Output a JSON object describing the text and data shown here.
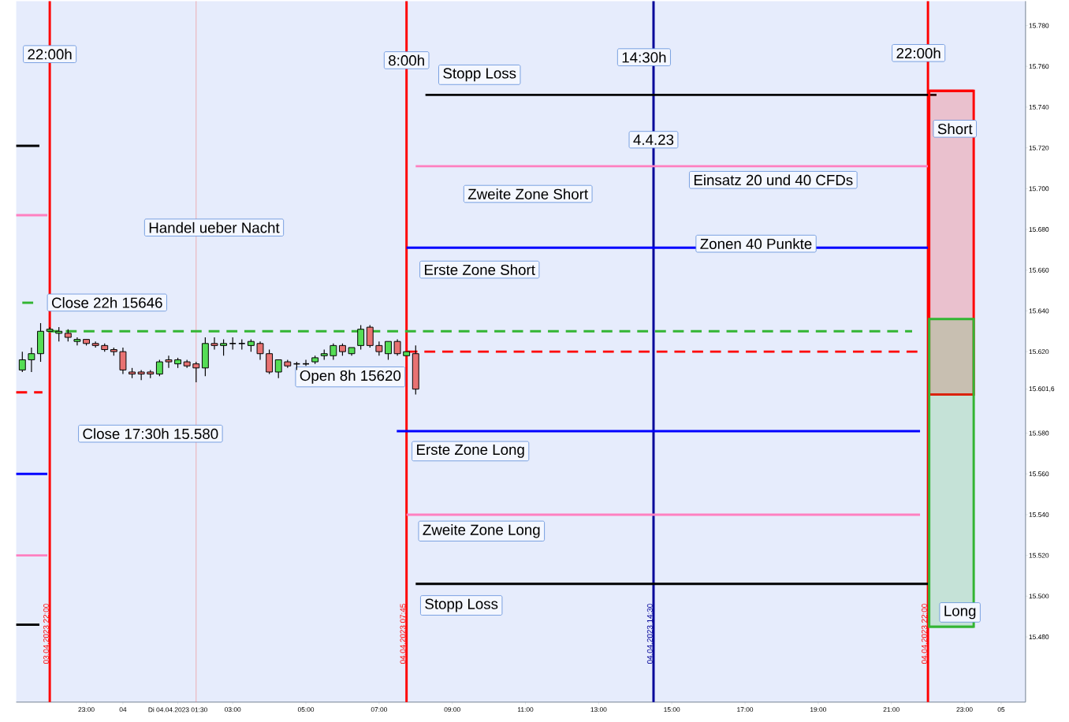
{
  "chart_data": {
    "type": "candlestick",
    "x": [
      "2023-04-03T21:15",
      "2023-04-03T21:30",
      "2023-04-03T21:45",
      "2023-04-03T22:00",
      "2023-04-03T22:15",
      "2023-04-03T22:30",
      "2023-04-03T22:45",
      "2023-04-03T23:00",
      "2023-04-03T23:15",
      "2023-04-03T23:30",
      "2023-04-03T23:45",
      "2023-04-04T00:00",
      "2023-04-04T00:15",
      "2023-04-04T00:30",
      "2023-04-04T00:45",
      "2023-04-04T01:00",
      "2023-04-04T01:15",
      "2023-04-04T01:30",
      "2023-04-04T01:45",
      "2023-04-04T02:00",
      "2023-04-04T02:15",
      "2023-04-04T02:30",
      "2023-04-04T02:45",
      "2023-04-04T03:00",
      "2023-04-04T03:15",
      "2023-04-04T03:30",
      "2023-04-04T03:45",
      "2023-04-04T04:00",
      "2023-04-04T04:15",
      "2023-04-04T04:30",
      "2023-04-04T04:45",
      "2023-04-04T05:00",
      "2023-04-04T05:15",
      "2023-04-04T05:30",
      "2023-04-04T05:45",
      "2023-04-04T06:00",
      "2023-04-04T06:15",
      "2023-04-04T06:30",
      "2023-04-04T06:45",
      "2023-04-04T07:00",
      "2023-04-04T07:15",
      "2023-04-04T07:30",
      "2023-04-04T07:45",
      "2023-04-04T08:00"
    ],
    "ohlc": [
      [
        15611,
        15620,
        15610,
        15616
      ],
      [
        15616,
        15622,
        15610,
        15619
      ],
      [
        15619,
        15634,
        15615,
        15630
      ],
      [
        15630,
        15632,
        15630,
        15631
      ],
      [
        15629,
        15632,
        15625,
        15630
      ],
      [
        15629,
        15631,
        15625,
        15627
      ],
      [
        15625,
        15627,
        15623,
        15626
      ],
      [
        15626,
        15626,
        15623,
        15624
      ],
      [
        15624,
        15625,
        15622,
        15623
      ],
      [
        15623,
        15624,
        15620,
        15621
      ],
      [
        15621,
        15622,
        15618,
        15620
      ],
      [
        15620,
        15622,
        15609,
        15611
      ],
      [
        15610,
        15612,
        15607,
        15609
      ],
      [
        15610,
        15611,
        15606,
        15609
      ],
      [
        15610,
        15611,
        15607,
        15609
      ],
      [
        15609,
        15616,
        15608,
        15615
      ],
      [
        15616,
        15618,
        15612,
        15615
      ],
      [
        15614,
        15617,
        15612,
        15616
      ],
      [
        15615,
        15616,
        15612,
        15613
      ],
      [
        15614,
        15615,
        15605,
        15612
      ],
      [
        15612,
        15627,
        15608,
        15624
      ],
      [
        15624,
        15627,
        15621,
        15623
      ],
      [
        15623,
        15626,
        15618,
        15624
      ],
      [
        15624,
        15627,
        15621,
        15624
      ],
      [
        15624,
        15626,
        15621,
        15624
      ],
      [
        15623,
        15626,
        15620,
        15625
      ],
      [
        15624,
        15625,
        15616,
        15619
      ],
      [
        15619,
        15621,
        15609,
        15610
      ],
      [
        15610,
        15616,
        15607,
        15616
      ],
      [
        15615,
        15616,
        15612,
        15613
      ],
      [
        15614,
        15615,
        15611,
        15614
      ],
      [
        15614,
        15616,
        15613,
        15614
      ],
      [
        15615,
        15618,
        15614,
        15617
      ],
      [
        15618,
        15621,
        15616,
        15619
      ],
      [
        15618,
        15624,
        15616,
        15623
      ],
      [
        15623,
        15624,
        15618,
        15620
      ],
      [
        15619,
        15622,
        15618,
        15622
      ],
      [
        15623,
        15633,
        15621,
        15631
      ],
      [
        15632,
        15633,
        15622,
        15623
      ],
      [
        15623,
        15625,
        15618,
        15620
      ],
      [
        15619,
        15625,
        15616,
        15625
      ],
      [
        15625,
        15626,
        15618,
        15619
      ],
      [
        15618,
        15620,
        15618,
        15620
      ],
      [
        15619,
        15623,
        15599,
        15601.6
      ]
    ],
    "xlim": [
      "2023-04-03T21:05",
      "2023-04-05T00:40"
    ],
    "ylim": [
      15448,
      15792
    ],
    "xticks": [
      {
        "value": "2023-04-03T23:00",
        "label": "23:00"
      },
      {
        "value": "2023-04-04T00:00",
        "label": "04"
      },
      {
        "value": "2023-04-04T01:30",
        "label": "Di 04.04.2023 01:30"
      },
      {
        "value": "2023-04-04T03:00",
        "label": "03:00"
      },
      {
        "value": "2023-04-04T05:00",
        "label": "05:00"
      },
      {
        "value": "2023-04-04T07:00",
        "label": "07:00"
      },
      {
        "value": "2023-04-04T09:00",
        "label": "09:00"
      },
      {
        "value": "2023-04-04T11:00",
        "label": "11:00"
      },
      {
        "value": "2023-04-04T13:00",
        "label": "13:00"
      },
      {
        "value": "2023-04-04T15:00",
        "label": "15:00"
      },
      {
        "value": "2023-04-04T17:00",
        "label": "17:00"
      },
      {
        "value": "2023-04-04T19:00",
        "label": "19:00"
      },
      {
        "value": "2023-04-04T21:00",
        "label": "21:00"
      },
      {
        "value": "2023-04-04T23:00",
        "label": "23:00"
      },
      {
        "value": "2023-04-05T00:00",
        "label": "05"
      }
    ],
    "yticks": [
      {
        "value": 15480,
        "label": "15.480"
      },
      {
        "value": 15500,
        "label": "15.500"
      },
      {
        "value": 15520,
        "label": "15.520"
      },
      {
        "value": 15540,
        "label": "15.540"
      },
      {
        "value": 15560,
        "label": "15.560"
      },
      {
        "value": 15580,
        "label": "15.580"
      },
      {
        "value": 15601.6,
        "label": "15.601,6"
      },
      {
        "value": 15620,
        "label": "15.620"
      },
      {
        "value": 15640,
        "label": "15.640"
      },
      {
        "value": 15660,
        "label": "15.660"
      },
      {
        "value": 15680,
        "label": "15.680"
      },
      {
        "value": 15700,
        "label": "15.700"
      },
      {
        "value": 15720,
        "label": "15.720"
      },
      {
        "value": 15740,
        "label": "15.740"
      },
      {
        "value": 15760,
        "label": "15.760"
      },
      {
        "value": 15780,
        "label": "15.780"
      }
    ],
    "series": [
      {
        "type": "line",
        "x": [
          "2023-04-04T08:16",
          "2023-04-04T22:14"
        ],
        "values": [
          15746,
          15746
        ],
        "color": "#000000"
      },
      {
        "type": "line",
        "x": [
          "2023-04-04T08:00",
          "2023-04-04T22:00"
        ],
        "values": [
          15711,
          15711
        ],
        "color": "#ff80c0"
      },
      {
        "type": "line",
        "x": [
          "2023-04-04T07:45",
          "2023-04-04T22:00"
        ],
        "values": [
          15671,
          15671
        ],
        "color": "#0000ff"
      },
      {
        "type": "line",
        "x": [
          "2023-04-03T21:57",
          "2023-04-04T21:34"
        ],
        "values": [
          15630,
          15630
        ],
        "color": "#33b533",
        "line_style": "dashed"
      },
      {
        "type": "line",
        "x": [
          "2023-04-04T07:45",
          "2023-04-04T21:47"
        ],
        "values": [
          15620,
          15620
        ],
        "color": "#ff0000",
        "line_style": "dashed"
      },
      {
        "type": "line",
        "x": [
          "2023-04-04T07:29",
          "2023-04-04T21:47"
        ],
        "values": [
          15581,
          15581
        ],
        "color": "#0000ff"
      },
      {
        "type": "line",
        "x": [
          "2023-04-04T07:45",
          "2023-04-04T21:47"
        ],
        "values": [
          15540,
          15540
        ],
        "color": "#ff80c0"
      },
      {
        "type": "line",
        "x": [
          "2023-04-04T08:00",
          "2023-04-04T22:00"
        ],
        "values": [
          15506,
          15506
        ],
        "color": "#000000"
      },
      {
        "type": "line",
        "x": [
          "2023-04-03T21:05",
          "2023-04-03T21:43"
        ],
        "values": [
          15721,
          15721
        ],
        "color": "#000000"
      },
      {
        "type": "line",
        "x": [
          "2023-04-03T21:05",
          "2023-04-03T21:56"
        ],
        "values": [
          15687,
          15687
        ],
        "color": "#ff80c0"
      },
      {
        "type": "line",
        "x": [
          "2023-04-03T21:15",
          "2023-04-03T21:33"
        ],
        "values": [
          15644,
          15644
        ],
        "color": "#33b533",
        "line_style": "dashed"
      },
      {
        "type": "line",
        "x": [
          "2023-04-03T21:05",
          "2023-04-03T21:48"
        ],
        "values": [
          15600,
          15600
        ],
        "color": "#ff0000",
        "line_style": "dashed"
      },
      {
        "type": "line",
        "x": [
          "2023-04-03T21:05",
          "2023-04-03T21:56"
        ],
        "values": [
          15560,
          15560
        ],
        "color": "#0000ff"
      },
      {
        "type": "line",
        "x": [
          "2023-04-03T21:05",
          "2023-04-03T21:56"
        ],
        "values": [
          15520,
          15520
        ],
        "color": "#ff80c0"
      },
      {
        "type": "line",
        "x": [
          "2023-04-03T21:05",
          "2023-04-03T21:43"
        ],
        "values": [
          15486,
          15486
        ],
        "color": "#000000"
      },
      {
        "type": "line",
        "x": [
          "2023-04-04T22:02",
          "2023-04-04T23:15"
        ],
        "values": [
          15748,
          15748
        ],
        "lower": [
          15599,
          15599
        ],
        "upper": [
          15748,
          15748
        ],
        "color": "#ff0000"
      },
      {
        "type": "line",
        "x": [
          "2023-04-04T22:02",
          "2023-04-04T23:15"
        ],
        "values": [
          15485,
          15485
        ],
        "lower": [
          15485,
          15485
        ],
        "upper": [
          15636,
          15636
        ],
        "color": "#33b533"
      }
    ],
    "ref_lines": [
      {
        "axis": "x",
        "value": "2023-04-03T22:00",
        "label": "03.04.2023 22:00",
        "color": "#ff0000"
      },
      {
        "axis": "x",
        "value": "2023-04-04T02:00",
        "color": "#f08080"
      },
      {
        "axis": "x",
        "value": "2023-04-04T07:45",
        "label": "04.04.2023 07:45",
        "color": "#ff0000"
      },
      {
        "axis": "x",
        "value": "2023-04-04T14:30",
        "label": "04.04.2023 14:30",
        "color": "#000099"
      },
      {
        "axis": "x",
        "value": "2023-04-04T22:00",
        "label": "04.04.2023 22:00",
        "color": "#ff0000"
      }
    ],
    "annotations": [
      {
        "text": "22:00h",
        "x": "2023-04-03T22:00",
        "y": 15766
      },
      {
        "text": "8:00h",
        "x": "2023-04-04T07:45",
        "y": 15763
      },
      "Stopp Loss",
      "14:30h",
      "22:00h",
      "Short",
      {
        "text": "4.4.23",
        "x": "2023-04-04T14:30",
        "y": 15724
      },
      "Einsatz 20 und 40 CFDs",
      "Zweite Zone Short",
      "Handel ueber Nacht",
      "Zonen 40 Punkte",
      "Erste Zone Short",
      "Close 22h 15646",
      "Open 8h 15620",
      "Close 17:30h 15.580",
      "Erste Zone Long",
      "Zweite Zone Long",
      "Stopp Loss",
      "Long"
    ]
  }
}
